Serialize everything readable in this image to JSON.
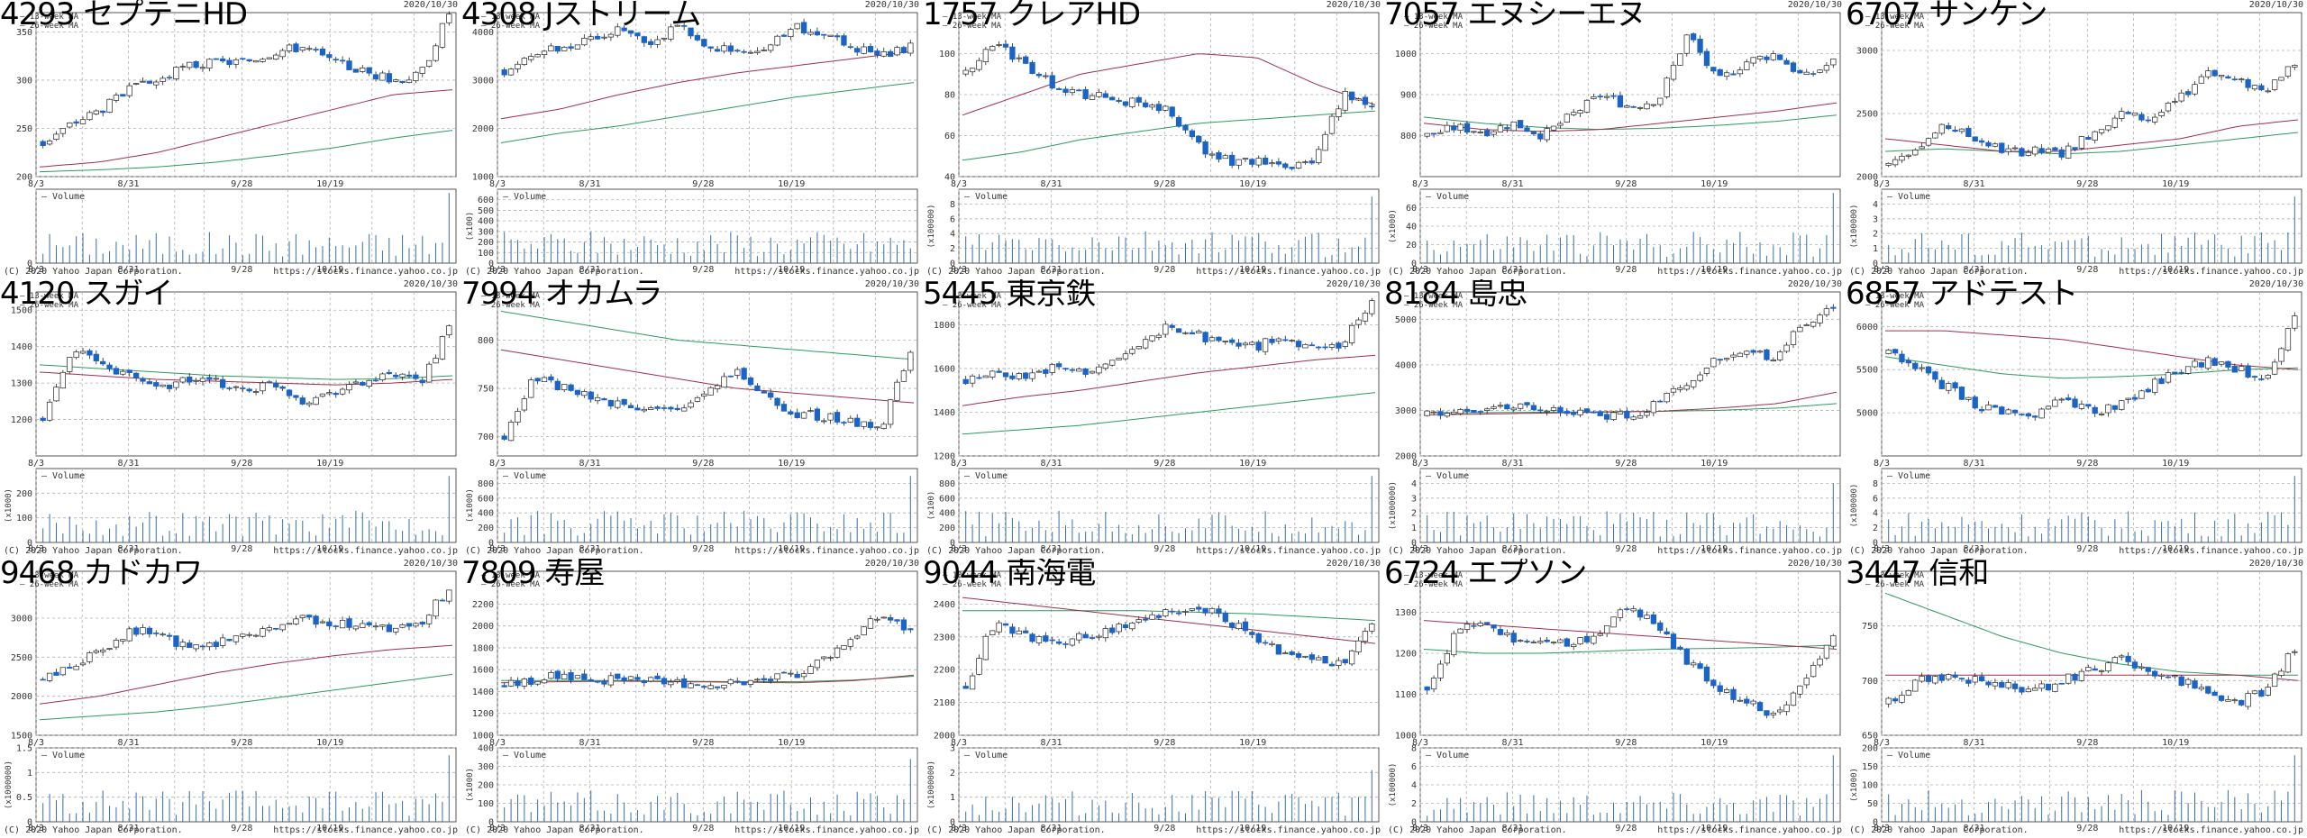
{
  "panels_meta": {
    "date_label": "2020/10/30",
    "copyright": "(C) 2020 Yahoo Japan Corporation.",
    "source": "https://stocks.finance.yahoo.co.jp",
    "ma_labels": [
      "13-week MA",
      "26-week MA"
    ],
    "volume_label": "Volume",
    "x_ticks": [
      "8/3",
      "8/31",
      "9/28",
      "10/19"
    ],
    "colors": {
      "up": "#ffffff",
      "down": "#1a64c8",
      "ma13": "#a0304a",
      "ma26": "#2e9a5e",
      "volume": "#3a6ea8",
      "grid": "#b0b0b0"
    }
  },
  "chart_data": [
    {
      "type": "candlestick",
      "title": "4293 セプテニHD",
      "ylim": [
        200,
        370
      ],
      "yticks": [
        200,
        250,
        300,
        350
      ],
      "vol_ylim": [
        0,
        1
      ],
      "vol_ticks": [],
      "vol_unit": "",
      "price": {
        "start": 235,
        "path": [
          235,
          255,
          270,
          290,
          300,
          315,
          318,
          320,
          330,
          335,
          318,
          310,
          300,
          305,
          370
        ],
        "ma13": [
          210,
          215,
          225,
          240,
          255,
          270,
          285,
          290
        ],
        "ma26": [
          205,
          207,
          210,
          215,
          222,
          230,
          240,
          248
        ]
      },
      "vol_spikes": [
        0.95
      ]
    },
    {
      "type": "candlestick",
      "title": "4308 Jストリーム",
      "ylim": [
        1000,
        4400
      ],
      "yticks": [
        1000,
        2000,
        3000,
        4000
      ],
      "vol_ylim": [
        0,
        700
      ],
      "vol_ticks": [
        100,
        200,
        300,
        400,
        500,
        600
      ],
      "vol_unit": "(x100)",
      "price": {
        "start": 3200,
        "path": [
          3200,
          3500,
          3700,
          3900,
          4100,
          3800,
          4100,
          3700,
          3600,
          3700,
          4100,
          3900,
          3700,
          3500,
          3700
        ],
        "ma13": [
          2200,
          2400,
          2700,
          2950,
          3150,
          3300,
          3450,
          3600
        ],
        "ma26": [
          1700,
          1900,
          2050,
          2250,
          2450,
          2650,
          2800,
          2950
        ]
      },
      "vol_spikes": []
    },
    {
      "type": "candlestick",
      "title": "1757 クレアHD",
      "ylim": [
        40,
        120
      ],
      "yticks": [
        40,
        60,
        80,
        100
      ],
      "vol_ylim": [
        0,
        10
      ],
      "vol_ticks": [
        2,
        4,
        6,
        8
      ],
      "vol_unit": "(x100000)",
      "price": {
        "start": 90,
        "path": [
          90,
          105,
          95,
          85,
          80,
          78,
          76,
          72,
          55,
          48,
          47,
          44,
          47,
          80,
          75
        ],
        "ma13": [
          70,
          80,
          90,
          95,
          100,
          98,
          85,
          75
        ],
        "ma26": [
          48,
          52,
          58,
          62,
          66,
          68,
          70,
          72
        ]
      },
      "vol_spikes": [
        0.9,
        0.8
      ]
    },
    {
      "type": "candlestick",
      "title": "7057 エヌシーエヌ",
      "ylim": [
        700,
        1100
      ],
      "yticks": [
        800,
        900,
        1000
      ],
      "vol_ylim": [
        0,
        80
      ],
      "vol_ticks": [
        20,
        40,
        60
      ],
      "vol_unit": "(x1000)",
      "price": {
        "start": 800,
        "path": [
          800,
          820,
          810,
          830,
          800,
          850,
          900,
          870,
          890,
          1050,
          930,
          980,
          1000,
          940,
          980
        ],
        "ma13": [
          830,
          815,
          810,
          815,
          830,
          845,
          860,
          880
        ],
        "ma26": [
          845,
          830,
          820,
          815,
          818,
          825,
          835,
          850
        ]
      },
      "vol_spikes": [
        0.95
      ]
    },
    {
      "type": "candlestick",
      "title": "6707 サンケン",
      "ylim": [
        2000,
        3300
      ],
      "yticks": [
        2000,
        2500,
        3000
      ],
      "vol_ylim": [
        0,
        5
      ],
      "vol_ticks": [
        1,
        2,
        3,
        4
      ],
      "vol_unit": "(x100000)",
      "price": {
        "start": 2100,
        "path": [
          2100,
          2250,
          2400,
          2300,
          2200,
          2200,
          2180,
          2350,
          2500,
          2450,
          2600,
          2850,
          2750,
          2700,
          2900
        ],
        "ma13": [
          2300,
          2250,
          2200,
          2200,
          2250,
          2300,
          2400,
          2450
        ],
        "ma26": [
          2200,
          2220,
          2200,
          2180,
          2200,
          2250,
          2300,
          2350
        ]
      },
      "vol_spikes": [
        0.9
      ]
    },
    {
      "type": "candlestick",
      "title": "4120 スガイ",
      "ylim": [
        1100,
        1550
      ],
      "yticks": [
        1200,
        1300,
        1400,
        1500
      ],
      "vol_ylim": [
        0,
        300
      ],
      "vol_ticks": [
        100,
        200
      ],
      "vol_unit": "(x1000)",
      "price": {
        "start": 1200,
        "path": [
          1200,
          1400,
          1350,
          1320,
          1290,
          1310,
          1300,
          1280,
          1300,
          1250,
          1280,
          1300,
          1320,
          1300,
          1450
        ],
        "ma13": [
          1330,
          1320,
          1310,
          1305,
          1300,
          1295,
          1300,
          1310
        ],
        "ma26": [
          1350,
          1340,
          1330,
          1320,
          1315,
          1310,
          1312,
          1320
        ]
      },
      "vol_spikes": [
        0.9
      ]
    },
    {
      "type": "candlestick",
      "title": "7994 オカムラ",
      "ylim": [
        680,
        850
      ],
      "yticks": [
        700,
        750,
        800
      ],
      "vol_ylim": [
        0,
        1000
      ],
      "vol_ticks": [
        200,
        400,
        600,
        800
      ],
      "vol_unit": "(x1000)",
      "price": {
        "start": 700,
        "path": [
          700,
          760,
          750,
          740,
          735,
          730,
          725,
          750,
          770,
          740,
          725,
          720,
          715,
          710,
          790
        ],
        "ma13": [
          790,
          780,
          770,
          760,
          750,
          745,
          740,
          735
        ],
        "ma26": [
          830,
          820,
          810,
          800,
          795,
          790,
          785,
          780
        ]
      },
      "vol_spikes": [
        0.9
      ]
    },
    {
      "type": "candlestick",
      "title": "5445 東京鉄",
      "ylim": [
        1200,
        1950
      ],
      "yticks": [
        1200,
        1400,
        1600,
        1800
      ],
      "vol_ylim": [
        0,
        1000
      ],
      "vol_ticks": [
        200,
        400,
        600,
        800
      ],
      "vol_unit": "(x100)",
      "price": {
        "start": 1550,
        "path": [
          1550,
          1580,
          1560,
          1600,
          1580,
          1620,
          1700,
          1800,
          1750,
          1720,
          1700,
          1750,
          1680,
          1720,
          1900
        ],
        "ma13": [
          1430,
          1470,
          1500,
          1540,
          1580,
          1610,
          1640,
          1660
        ],
        "ma26": [
          1300,
          1320,
          1340,
          1370,
          1400,
          1430,
          1460,
          1490
        ]
      },
      "vol_spikes": [
        0.9
      ]
    },
    {
      "type": "candlestick",
      "title": "8184 島忠",
      "ylim": [
        2000,
        5600
      ],
      "yticks": [
        2000,
        3000,
        4000,
        5000
      ],
      "vol_ylim": [
        0,
        5
      ],
      "vol_ticks": [
        1,
        2,
        3,
        4
      ],
      "vol_unit": "(x1000000)",
      "price": {
        "start": 2900,
        "path": [
          2900,
          2950,
          3000,
          3050,
          3100,
          3000,
          2900,
          2850,
          3200,
          3600,
          4200,
          4200,
          4200,
          4900,
          5300
        ],
        "ma13": [
          2900,
          2920,
          2940,
          2960,
          2980,
          3050,
          3150,
          3400
        ],
        "ma26": [
          2950,
          2950,
          2960,
          2970,
          2980,
          3000,
          3050,
          3150
        ]
      },
      "vol_spikes": [
        0.8
      ]
    },
    {
      "type": "candlestick",
      "title": "6857 アドテスト",
      "ylim": [
        4500,
        6400
      ],
      "yticks": [
        5000,
        5500,
        6000
      ],
      "vol_ylim": [
        0,
        10
      ],
      "vol_ticks": [
        2,
        4,
        6,
        8
      ],
      "vol_unit": "(x100000)",
      "price": {
        "start": 5700,
        "path": [
          5700,
          5500,
          5300,
          5100,
          5000,
          4950,
          5200,
          5000,
          5100,
          5300,
          5500,
          5600,
          5500,
          5400,
          6100
        ],
        "ma13": [
          5950,
          5950,
          5900,
          5850,
          5750,
          5650,
          5550,
          5500
        ],
        "ma26": [
          5650,
          5550,
          5450,
          5400,
          5420,
          5450,
          5500,
          5520
        ]
      },
      "vol_spikes": [
        0.9
      ]
    },
    {
      "type": "candlestick",
      "title": "9468 カドカワ",
      "ylim": [
        1500,
        3600
      ],
      "yticks": [
        1500,
        2000,
        2500,
        3000
      ],
      "vol_ylim": [
        0,
        1.5
      ],
      "vol_ticks": [
        0.5,
        1,
        1.5
      ],
      "vol_unit": "(x1000000)",
      "price": {
        "start": 2200,
        "path": [
          2200,
          2400,
          2600,
          2850,
          2800,
          2600,
          2700,
          2800,
          2900,
          3000,
          2950,
          2900,
          2850,
          2900,
          3400
        ],
        "ma13": [
          1900,
          2000,
          2150,
          2300,
          2420,
          2520,
          2600,
          2650
        ],
        "ma26": [
          1700,
          1750,
          1800,
          1880,
          1980,
          2080,
          2180,
          2280
        ]
      },
      "vol_spikes": [
        0.9
      ]
    },
    {
      "type": "candlestick",
      "title": "7809 寿屋",
      "ylim": [
        1000,
        2500
      ],
      "yticks": [
        1000,
        1200,
        1400,
        1600,
        1800,
        2000,
        2200
      ],
      "vol_ylim": [
        0,
        400
      ],
      "vol_ticks": [
        100,
        200,
        300,
        400
      ],
      "vol_unit": "(x1000)",
      "price": {
        "start": 1450,
        "path": [
          1450,
          1500,
          1550,
          1520,
          1500,
          1490,
          1480,
          1470,
          1480,
          1500,
          1550,
          1700,
          1900,
          2100,
          1950
        ],
        "ma13": [
          1480,
          1490,
          1495,
          1490,
          1485,
          1480,
          1500,
          1550
        ],
        "ma26": [
          1500,
          1500,
          1500,
          1495,
          1490,
          1490,
          1505,
          1540
        ]
      },
      "vol_spikes": [
        0.85
      ]
    },
    {
      "type": "candlestick",
      "title": "9044 南海電",
      "ylim": [
        2000,
        2500
      ],
      "yticks": [
        2000,
        2100,
        2200,
        2300,
        2400
      ],
      "vol_ylim": [
        0,
        3
      ],
      "vol_ticks": [
        1,
        2,
        3
      ],
      "vol_unit": "(x1000000)",
      "price": {
        "start": 2150,
        "path": [
          2150,
          2350,
          2300,
          2280,
          2300,
          2320,
          2350,
          2380,
          2400,
          2350,
          2300,
          2250,
          2230,
          2210,
          2350
        ],
        "ma13": [
          2420,
          2400,
          2380,
          2360,
          2340,
          2320,
          2300,
          2280
        ],
        "ma26": [
          2380,
          2380,
          2380,
          2380,
          2375,
          2370,
          2360,
          2350
        ]
      },
      "vol_spikes": [
        0.7
      ]
    },
    {
      "type": "candlestick",
      "title": "6724 エプソン",
      "ylim": [
        1000,
        1400
      ],
      "yticks": [
        1000,
        1100,
        1200,
        1300
      ],
      "vol_ylim": [
        0,
        8
      ],
      "vol_ticks": [
        2,
        4,
        6,
        8
      ],
      "vol_unit": "(x100000)",
      "price": {
        "start": 1120,
        "path": [
          1120,
          1250,
          1280,
          1230,
          1240,
          1220,
          1250,
          1320,
          1260,
          1180,
          1120,
          1080,
          1050,
          1130,
          1240
        ],
        "ma13": [
          1280,
          1270,
          1260,
          1250,
          1240,
          1230,
          1220,
          1210
        ],
        "ma26": [
          1210,
          1200,
          1200,
          1205,
          1210,
          1212,
          1215,
          1220
        ]
      },
      "vol_spikes": [
        0.9
      ]
    },
    {
      "type": "candlestick",
      "title": "3447 信和",
      "ylim": [
        650,
        800
      ],
      "yticks": [
        650,
        700,
        750
      ],
      "vol_ylim": [
        0,
        200
      ],
      "vol_ticks": [
        50,
        100,
        150,
        200
      ],
      "vol_unit": "(x1000)",
      "price": {
        "start": 680,
        "path": [
          680,
          700,
          705,
          700,
          695,
          690,
          700,
          710,
          720,
          705,
          700,
          690,
          680,
          690,
          730
        ],
        "ma13": [
          705,
          705,
          705,
          705,
          705,
          705,
          705,
          700
        ],
        "ma26": [
          780,
          760,
          740,
          725,
          715,
          708,
          705,
          705
        ]
      },
      "vol_spikes": [
        0.9
      ]
    }
  ]
}
